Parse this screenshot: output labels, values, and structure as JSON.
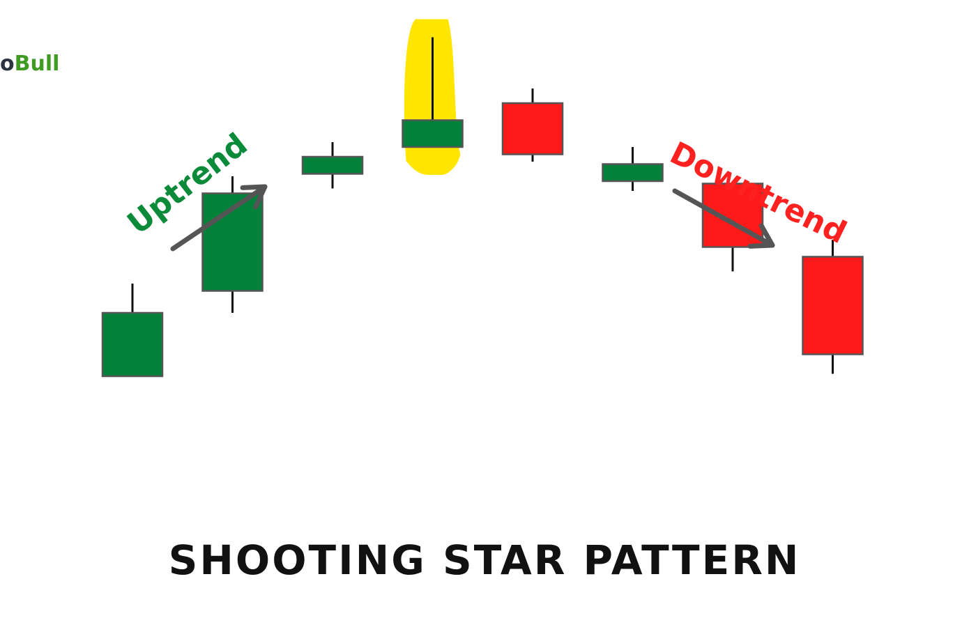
{
  "logo": {
    "prefix": "o",
    "main": "Bull"
  },
  "chart_data": {
    "type": "candlestick",
    "title": "SHOOTING STAR PATTERN",
    "candles": [
      {
        "open": 62,
        "close": 88,
        "high": 100,
        "low": 62,
        "color": "green"
      },
      {
        "open": 97,
        "close": 137,
        "high": 144,
        "low": 88,
        "color": "green"
      },
      {
        "open": 145,
        "close": 152,
        "high": 158,
        "low": 139,
        "color": "green"
      },
      {
        "open": 156,
        "close": 167,
        "high": 201,
        "low": 156,
        "color": "green",
        "highlighted": true
      },
      {
        "open": 153,
        "close": 174,
        "high": 180,
        "low": 150,
        "color": "red"
      },
      {
        "open": 142,
        "close": 149,
        "high": 156,
        "low": 138,
        "color": "green"
      },
      {
        "open": 115,
        "close": 141,
        "high": 141,
        "low": 105,
        "color": "red"
      },
      {
        "open": 71,
        "close": 111,
        "high": 118,
        "low": 63,
        "color": "red"
      }
    ],
    "annotations": [
      {
        "text": "Uptrend",
        "color": "#0b8a3a"
      },
      {
        "text": "Downtrend",
        "color": "#ff2020"
      }
    ],
    "colors": {
      "green": "#03803a",
      "red": "#ff1a1a",
      "highlight": "#ffe600",
      "arrow": "#555555"
    },
    "grid": false
  }
}
